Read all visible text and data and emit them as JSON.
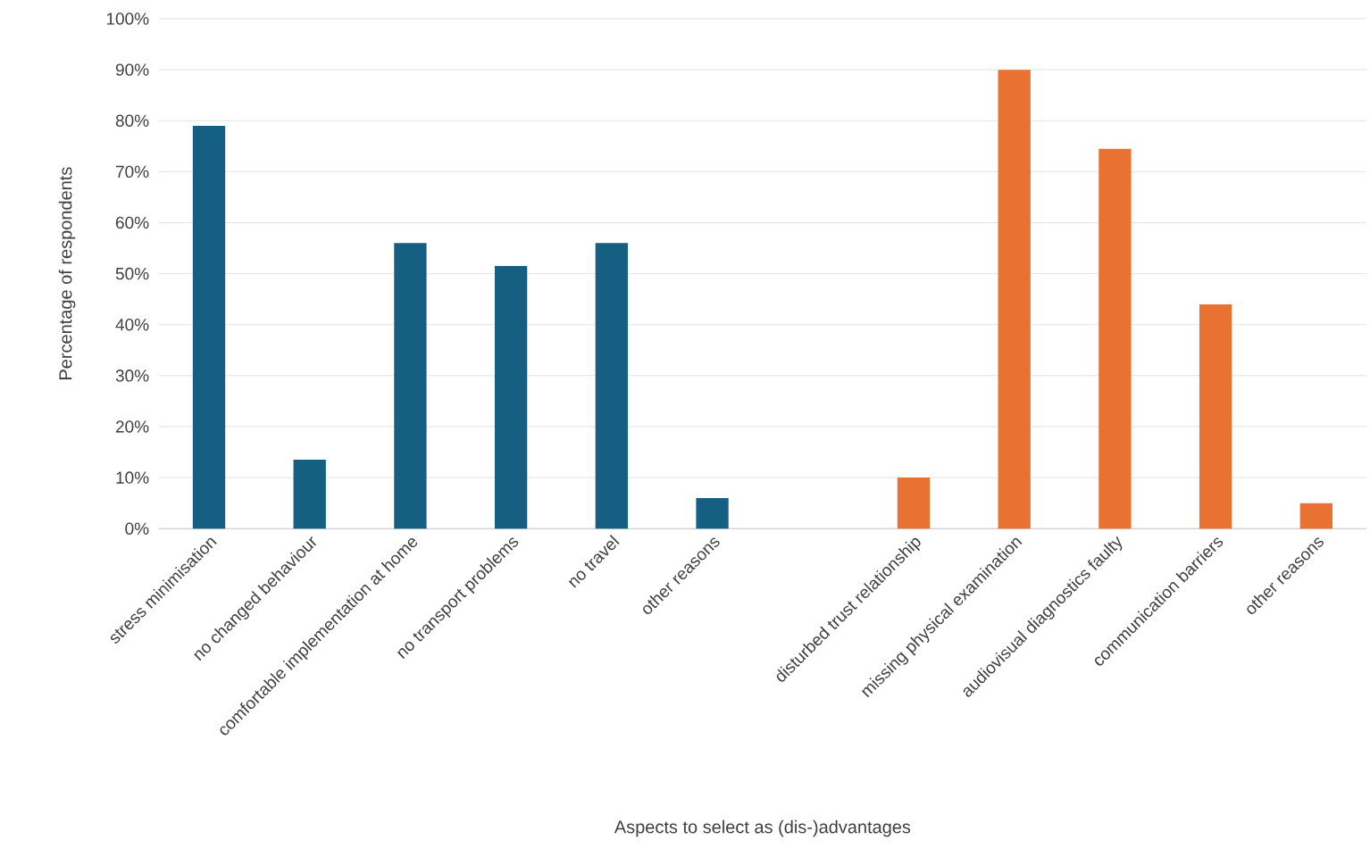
{
  "chart_data": {
    "type": "bar",
    "xlabel": "Aspects to select as (dis-)advantages",
    "ylabel": "Percentage of respondents",
    "categories": [
      "stress minimisation",
      "no changed behaviour",
      "comfortable implementation at home",
      "no transport problems",
      "no travel",
      "other reasons",
      null,
      "disturbed trust relationship",
      "missing physical examination",
      "audiovisual diagnostics faulty",
      "communication barriers",
      "other reasons"
    ],
    "values": [
      79,
      13.5,
      56,
      51.5,
      56,
      6,
      null,
      10,
      90,
      74.5,
      44,
      5
    ],
    "colors": [
      "#156082",
      "#156082",
      "#156082",
      "#156082",
      "#156082",
      "#156082",
      "#156082",
      "#e97132",
      "#e97132",
      "#e97132",
      "#e97132",
      "#e97132"
    ],
    "ylim": [
      0,
      100
    ],
    "yticks": [
      {
        "value": 0,
        "label": "0%"
      },
      {
        "value": 10,
        "label": "10%"
      },
      {
        "value": 20,
        "label": "20%"
      },
      {
        "value": 30,
        "label": "30%"
      },
      {
        "value": 40,
        "label": "40%"
      },
      {
        "value": 50,
        "label": "50%"
      },
      {
        "value": 60,
        "label": "60%"
      },
      {
        "value": 70,
        "label": "70%"
      },
      {
        "value": 80,
        "label": "80%"
      },
      {
        "value": 90,
        "label": "90%"
      },
      {
        "value": 100,
        "label": "100%"
      }
    ],
    "grid": "y"
  }
}
